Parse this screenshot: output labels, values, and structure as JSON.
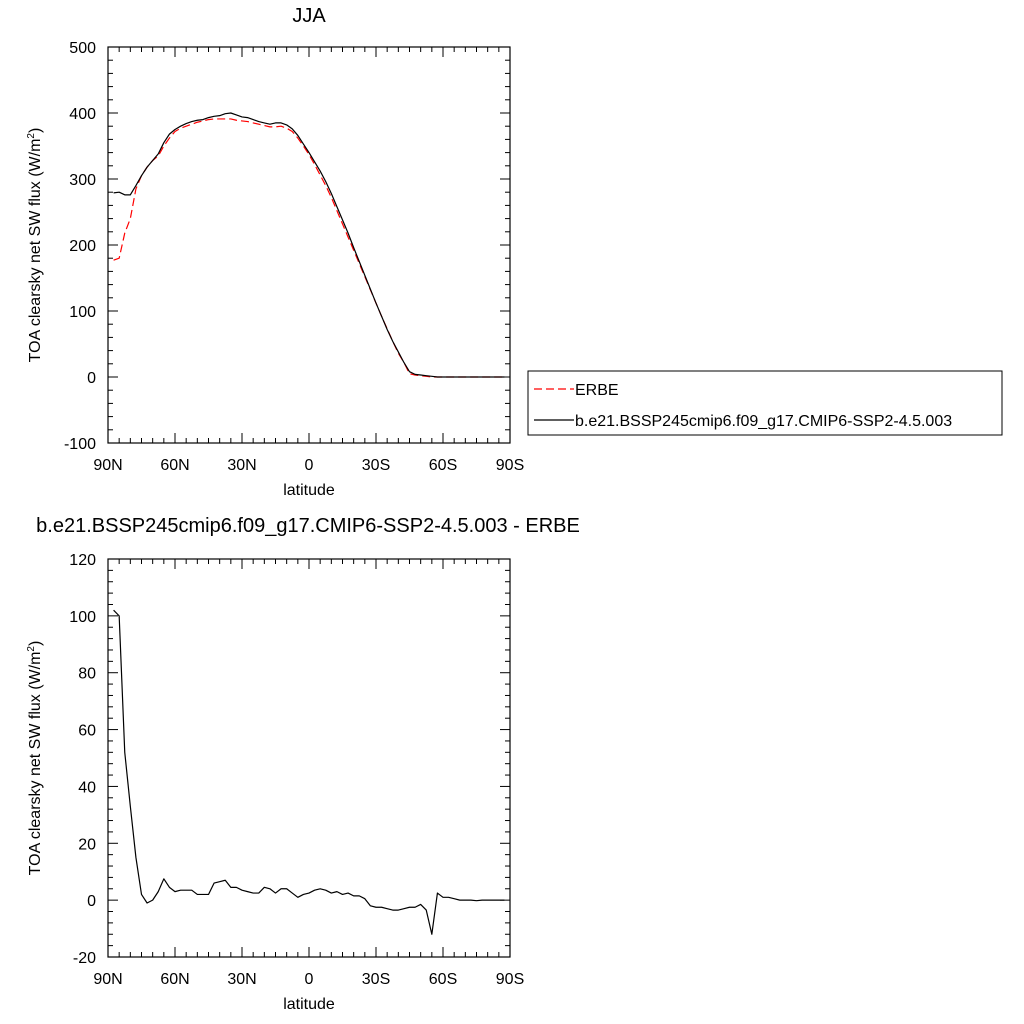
{
  "chart_data": [
    {
      "type": "line",
      "title": "JJA",
      "xlabel": "latitude",
      "ylabel": "TOA clearsky net SW flux (W/m",
      "ylabel_sup": "2",
      "ylabel_close": ")",
      "xlim": [
        90,
        -90
      ],
      "ylim": [
        -100,
        500
      ],
      "x_ticks": [
        {
          "value": 90,
          "label": "90N"
        },
        {
          "value": 60,
          "label": "60N"
        },
        {
          "value": 30,
          "label": "30N"
        },
        {
          "value": 0,
          "label": "0"
        },
        {
          "value": -30,
          "label": "30S"
        },
        {
          "value": -60,
          "label": "60S"
        },
        {
          "value": -90,
          "label": "90S"
        }
      ],
      "y_ticks": [
        {
          "value": 500,
          "label": "500"
        },
        {
          "value": 400,
          "label": "400"
        },
        {
          "value": 300,
          "label": "300"
        },
        {
          "value": 200,
          "label": "200"
        },
        {
          "value": 100,
          "label": "100"
        },
        {
          "value": 0,
          "label": "0"
        },
        {
          "value": -100,
          "label": "-100"
        }
      ],
      "grid": false,
      "legend_position": "right",
      "series": [
        {
          "name": "ERBE",
          "color": "#ff0000",
          "dash": true,
          "x": [
            87.5,
            85,
            82.5,
            80,
            77.5,
            75,
            72.5,
            70,
            67.5,
            65,
            62.5,
            60,
            57.5,
            55,
            52.5,
            50,
            47.5,
            45,
            42.5,
            40,
            37.5,
            35,
            32.5,
            30,
            27.5,
            25,
            22.5,
            20,
            17.5,
            15,
            12.5,
            10,
            7.5,
            5,
            2.5,
            0,
            -2.5,
            -5,
            -7.5,
            -10,
            -12.5,
            -15,
            -17.5,
            -20,
            -22.5,
            -25,
            -27.5,
            -30,
            -32.5,
            -35,
            -37.5,
            -40,
            -42.5,
            -45,
            -47.5,
            -50,
            -52.5,
            -55,
            -57.5,
            -60,
            -62.5,
            -65,
            -67.5,
            -70,
            -72.5,
            -75,
            -77.5,
            -80,
            -82.5,
            -85,
            -87.5
          ],
          "y": [
            177,
            180,
            218,
            240,
            285,
            305,
            318,
            328,
            335,
            350,
            362,
            372,
            377,
            380,
            383,
            386,
            388,
            390,
            391,
            391,
            391,
            391,
            389,
            388,
            387,
            385,
            383,
            381,
            379,
            379,
            380,
            377,
            372,
            362,
            350,
            337,
            322,
            306,
            290,
            272,
            252,
            232,
            212,
            192,
            172,
            152,
            132,
            112,
            92,
            73,
            54,
            36,
            22,
            5,
            3,
            2,
            1,
            0,
            0,
            0,
            0,
            0,
            0,
            0,
            0,
            0,
            0,
            0,
            0,
            0,
            0
          ]
        },
        {
          "name": "b.e21.BSSP245cmip6.f09_g17.CMIP6-SSP2-4.5.003",
          "color": "#000000",
          "dash": false,
          "x": [
            87.5,
            85,
            82.5,
            80,
            77.5,
            75,
            72.5,
            70,
            67.5,
            65,
            62.5,
            60,
            57.5,
            55,
            52.5,
            50,
            47.5,
            45,
            42.5,
            40,
            37.5,
            35,
            32.5,
            30,
            27.5,
            25,
            22.5,
            20,
            17.5,
            15,
            12.5,
            10,
            7.5,
            5,
            2.5,
            0,
            -2.5,
            -5,
            -7.5,
            -10,
            -12.5,
            -15,
            -17.5,
            -20,
            -22.5,
            -25,
            -27.5,
            -30,
            -32.5,
            -35,
            -37.5,
            -40,
            -42.5,
            -45,
            -47.5,
            -50,
            -52.5,
            -55,
            -57.5,
            -60,
            -62.5,
            -65,
            -67.5,
            -70,
            -72.5,
            -75,
            -77.5,
            -80,
            -82.5,
            -85,
            -87.5
          ],
          "y": [
            279,
            280,
            276,
            276,
            290,
            305,
            318,
            328,
            338,
            355,
            368,
            375,
            380,
            384,
            387,
            389,
            390,
            393,
            395,
            396,
            399,
            400,
            397,
            394,
            393,
            390,
            387,
            385,
            383,
            385,
            385,
            382,
            376,
            366,
            353,
            340,
            326,
            312,
            296,
            278,
            258,
            238,
            218,
            196,
            175,
            154,
            133,
            112,
            92,
            72,
            54,
            38,
            22,
            8,
            4,
            3,
            2,
            1,
            0,
            0,
            0,
            0,
            0,
            0,
            0,
            0,
            0,
            0,
            0,
            0,
            0
          ]
        }
      ]
    },
    {
      "type": "line",
      "title": "b.e21.BSSP245cmip6.f09_g17.CMIP6-SSP2-4.5.003 - ERBE",
      "xlabel": "latitude",
      "ylabel": "TOA clearsky net SW flux (W/m",
      "ylabel_sup": "2",
      "ylabel_close": ")",
      "xlim": [
        90,
        -90
      ],
      "ylim": [
        -20,
        120
      ],
      "x_ticks": [
        {
          "value": 90,
          "label": "90N"
        },
        {
          "value": 60,
          "label": "60N"
        },
        {
          "value": 30,
          "label": "30N"
        },
        {
          "value": 0,
          "label": "0"
        },
        {
          "value": -30,
          "label": "30S"
        },
        {
          "value": -60,
          "label": "60S"
        },
        {
          "value": -90,
          "label": "90S"
        }
      ],
      "y_ticks": [
        {
          "value": 120,
          "label": "120"
        },
        {
          "value": 100,
          "label": "100"
        },
        {
          "value": 80,
          "label": "80"
        },
        {
          "value": 60,
          "label": "60"
        },
        {
          "value": 40,
          "label": "40"
        },
        {
          "value": 20,
          "label": "20"
        },
        {
          "value": 0,
          "label": "0"
        },
        {
          "value": -20,
          "label": "-20"
        }
      ],
      "grid": false,
      "series": [
        {
          "color": "#000000",
          "dash": false,
          "x": [
            87.5,
            85,
            82.5,
            80,
            77.5,
            75,
            72.5,
            70,
            67.5,
            65,
            62.5,
            60,
            57.5,
            55,
            52.5,
            50,
            47.5,
            45,
            42.5,
            40,
            37.5,
            35,
            32.5,
            30,
            27.5,
            25,
            22.5,
            20,
            17.5,
            15,
            12.5,
            10,
            7.5,
            5,
            2.5,
            0,
            -2.5,
            -5,
            -7.5,
            -10,
            -12.5,
            -15,
            -17.5,
            -20,
            -22.5,
            -25,
            -27.5,
            -30,
            -32.5,
            -35,
            -37.5,
            -40,
            -42.5,
            -45,
            -47.5,
            -50,
            -52.5,
            -55,
            -57.5,
            -60,
            -62.5,
            -65,
            -67.5,
            -70,
            -72.5,
            -75,
            -77.5,
            -80,
            -82.5,
            -85,
            -87.5
          ],
          "y": [
            102,
            100,
            52,
            33,
            15,
            2,
            -1,
            0,
            3,
            7.5,
            4.5,
            3,
            3.5,
            3.5,
            3.5,
            2,
            2,
            2,
            6,
            6.5,
            7,
            4.5,
            4.5,
            3.5,
            3,
            2.5,
            2.5,
            4.5,
            4,
            2.5,
            4,
            4,
            2.5,
            1,
            2,
            2.5,
            3.5,
            4,
            3.5,
            2.5,
            3,
            2,
            2.5,
            1.5,
            1.5,
            0.5,
            -2,
            -2.5,
            -2.5,
            -3,
            -3.5,
            -3.5,
            -3,
            -2.5,
            -2.5,
            -1.5,
            -3.5,
            -12,
            2.5,
            1,
            1,
            0.5,
            0,
            0,
            0,
            -0.2,
            0,
            0,
            0,
            0,
            0
          ]
        }
      ]
    }
  ]
}
